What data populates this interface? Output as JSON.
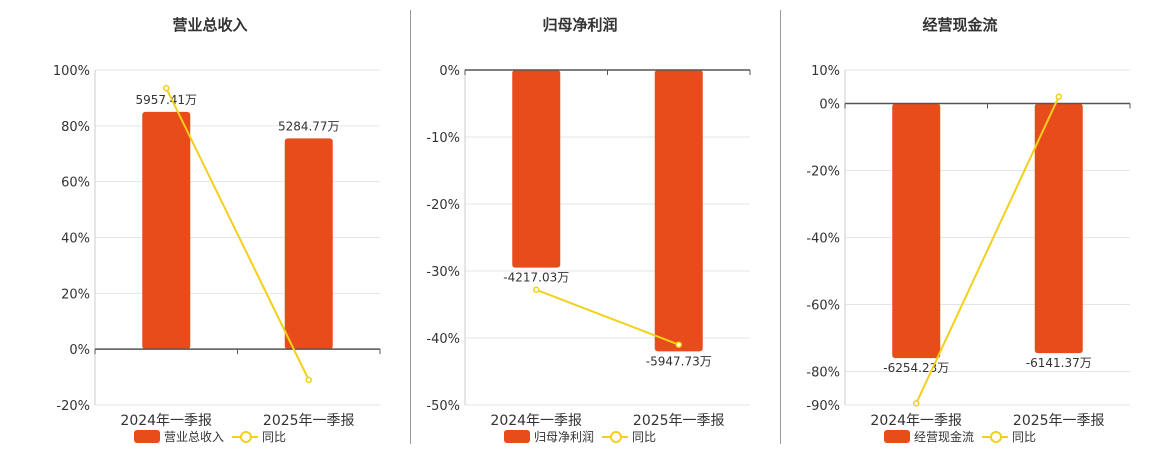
{
  "colors": {
    "bar": "#e84c1b",
    "line": "#f2d01c",
    "axis": "#555555",
    "grid": "#e6e6e6"
  },
  "chart_data": [
    {
      "type": "bar",
      "title": "营业总收入",
      "categories": [
        "2024年一季报",
        "2025年一季报"
      ],
      "bar_series": {
        "name": "营业总收入",
        "values": [
          85,
          75.5
        ],
        "labels": [
          "5957.41万",
          "5284.77万"
        ]
      },
      "line_series": {
        "name": "同比",
        "values": [
          93.5,
          -11
        ]
      },
      "ylim": [
        -20,
        100
      ],
      "yticks": [
        -20,
        0,
        20,
        40,
        60,
        80,
        100
      ],
      "ytick_labels": [
        "-20%",
        "0%",
        "20%",
        "40%",
        "60%",
        "80%",
        "100%"
      ],
      "legend": [
        "营业总收入",
        "同比"
      ]
    },
    {
      "type": "bar",
      "title": "归母净利润",
      "categories": [
        "2024年一季报",
        "2025年一季报"
      ],
      "bar_series": {
        "name": "归母净利润",
        "values": [
          -29.5,
          -42
        ],
        "labels": [
          "-4217.03万",
          "-5947.73万"
        ]
      },
      "line_series": {
        "name": "同比",
        "values": [
          -32.8,
          -41
        ]
      },
      "ylim": [
        -50,
        0
      ],
      "yticks": [
        -50,
        -40,
        -30,
        -20,
        -10,
        0
      ],
      "ytick_labels": [
        "-50%",
        "-40%",
        "-30%",
        "-20%",
        "-10%",
        "0%"
      ],
      "legend": [
        "归母净利润",
        "同比"
      ]
    },
    {
      "type": "bar",
      "title": "经营现金流",
      "categories": [
        "2024年一季报",
        "2025年一季报"
      ],
      "bar_series": {
        "name": "经营现金流",
        "values": [
          -76,
          -74.5
        ],
        "labels": [
          "-6254.23万",
          "-6141.37万"
        ]
      },
      "line_series": {
        "name": "同比",
        "values": [
          -89.5,
          2
        ]
      },
      "ylim": [
        -90,
        10
      ],
      "yticks": [
        -90,
        -80,
        -60,
        -40,
        -20,
        0,
        10
      ],
      "ytick_labels": [
        "-90%",
        "-80%",
        "-60%",
        "-40%",
        "-20%",
        "0%",
        "10%"
      ],
      "legend": [
        "经营现金流",
        "同比"
      ]
    }
  ]
}
